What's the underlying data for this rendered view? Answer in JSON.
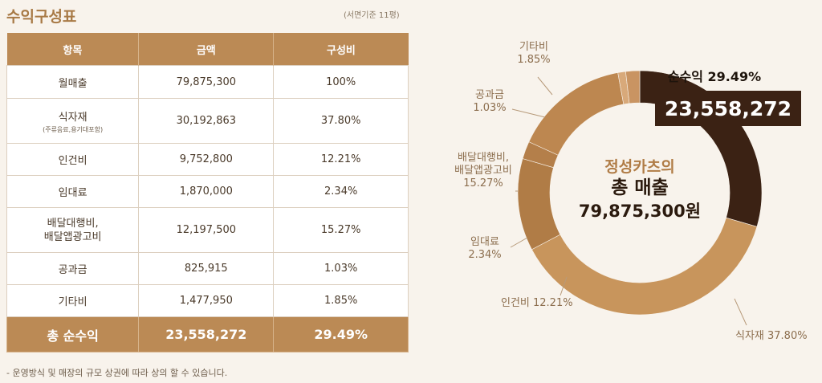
{
  "header": {
    "title": "수익구성표",
    "subtitle": "(서면기준 11평)"
  },
  "table": {
    "columns": [
      "항목",
      "금액",
      "구성비"
    ],
    "rows": [
      {
        "item": "월매출",
        "sub": "",
        "amount": "79,875,300",
        "ratio": "100%"
      },
      {
        "item": "식자재",
        "sub": "(주류음료,용기대포함)",
        "amount": "30,192,863",
        "ratio": "37.80%"
      },
      {
        "item": "인건비",
        "sub": "",
        "amount": "9,752,800",
        "ratio": "12.21%"
      },
      {
        "item": "임대료",
        "sub": "",
        "amount": "1,870,000",
        "ratio": "2.34%"
      },
      {
        "item": "배달대행비,\n배달앱광고비",
        "sub": "",
        "amount": "12,197,500",
        "ratio": "15.27%"
      },
      {
        "item": "공과금",
        "sub": "",
        "amount": "825,915",
        "ratio": "1.03%"
      },
      {
        "item": "기타비",
        "sub": "",
        "amount": "1,477,950",
        "ratio": "1.85%"
      }
    ],
    "total": {
      "item": "총 순수익",
      "amount": "23,558,272",
      "ratio": "29.49%"
    }
  },
  "note": "- 운영방식 및 매장의 규모 상권에 따라 상의 할 수 있습니다.",
  "colors": {
    "accent": "#bb8a55",
    "dark": "#3b2214",
    "background": "#f8f3ec"
  },
  "chart_data": {
    "type": "pie",
    "center": {
      "line1": "정성카츠의",
      "line2": "총 매출",
      "line3": "79,875,300원"
    },
    "highlight": {
      "label": "순수익 29.49%",
      "value": "23,558,272"
    },
    "slices": [
      {
        "name": "순수익",
        "value": 29.49,
        "color": "#3b2214",
        "label": "순수익 29.49%"
      },
      {
        "name": "식자재",
        "value": 37.8,
        "color": "#c8955c",
        "label": "식자재 37.80%"
      },
      {
        "name": "인건비",
        "value": 12.21,
        "color": "#b07c46",
        "label": "인건비 12.21%"
      },
      {
        "name": "임대료",
        "value": 2.34,
        "color": "#b47f4a",
        "label": "임대료\n2.34%"
      },
      {
        "name": "배달대행비,배달앱광고비",
        "value": 15.27,
        "color": "#bd8750",
        "label": "배달대행비,\n배달앱광고비\n15.27%"
      },
      {
        "name": "공과금",
        "value": 1.03,
        "color": "#d8a97a",
        "label": "공과금\n1.03%"
      },
      {
        "name": "기타비",
        "value": 1.85,
        "color": "#c99462",
        "label": "기타비\n1.85%"
      }
    ]
  }
}
